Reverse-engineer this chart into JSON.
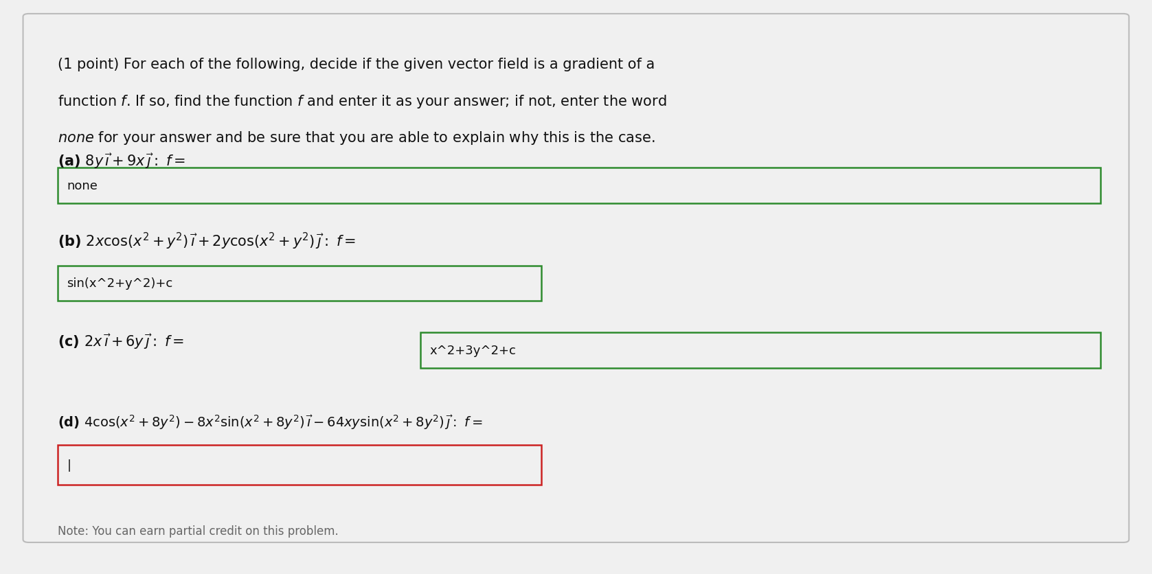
{
  "bg_outer": "#3a3a3a",
  "bg_inner": "#f0f0f0",
  "text_color": "#111111",
  "green_box_color": "#2e8b2e",
  "red_box_color": "#cc2222",
  "box_fill": "#f0f0f0",
  "part_a_answer": "none",
  "part_b_answer": "sin(x^2+y^2)+c",
  "part_c_answer": "x^2+3y^2+c",
  "part_d_answer": "|",
  "bottom_text": "Note: You can earn partial credit on this problem.",
  "font_size_header": 15,
  "font_size_parts": 14,
  "font_size_answer": 13,
  "header_line1": "(1 point) For each of the following, decide if the given vector field is a gradient of a",
  "header_line2": "function $f$. If so, find the function $f$ and enter it as your answer; if not, enter the word",
  "header_line3": "$none$ for your answer and be sure that you are able to explain why this is the case."
}
